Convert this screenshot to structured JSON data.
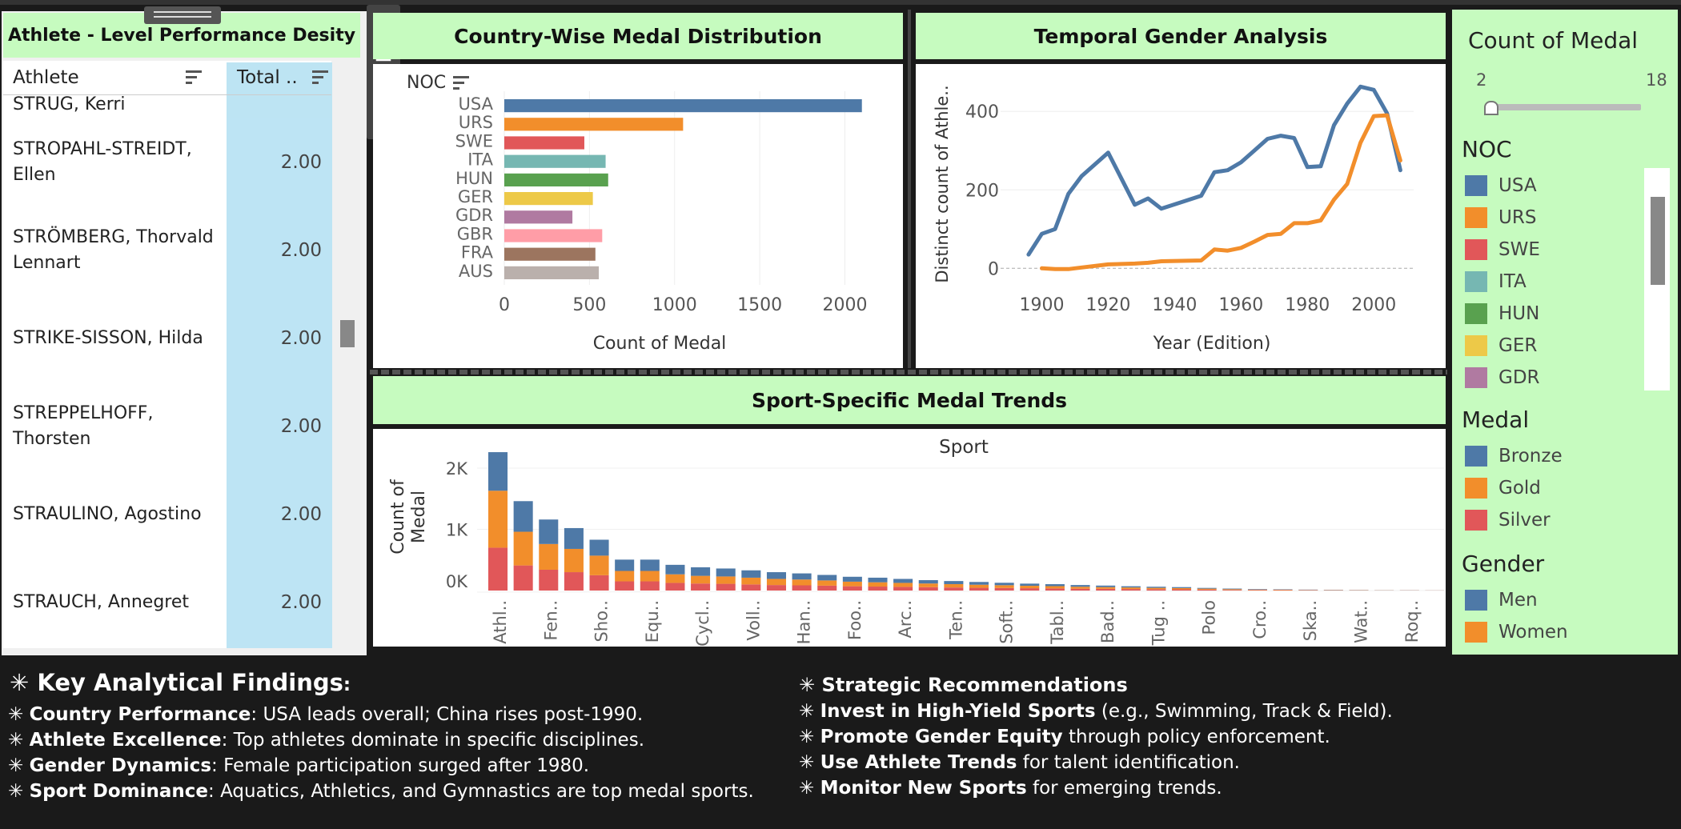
{
  "left_panel": {
    "title": "Athlete - Level Performance Desity",
    "col_athlete": "Athlete",
    "col_total": "Total ..",
    "partial_row": "STRUG, Kerri",
    "rows": [
      {
        "name": "STROPAHL-STREIDT, Ellen",
        "total": "2.00"
      },
      {
        "name": "STRÖMBERG, Thorvald Lennart",
        "total": "2.00"
      },
      {
        "name": "STRIKE-SISSON, Hilda",
        "total": "2.00"
      },
      {
        "name": "STREPPELHOFF, Thorsten",
        "total": "2.00"
      },
      {
        "name": "STRAULINO, Agostino",
        "total": "2.00"
      },
      {
        "name": "STRAUCH, Annegret",
        "total": "2.00"
      }
    ]
  },
  "bar_panel": {
    "title": "Country-Wise Medal Distribution",
    "header": "NOC",
    "xlabel": "Count of Medal",
    "xticks": [
      "0",
      "500",
      "1000",
      "1500",
      "2000"
    ]
  },
  "line_panel": {
    "title": "Temporal Gender Analysis",
    "ylabel": "Distinct count of Athle..",
    "xlabel": "Year (Edition)",
    "yticks": [
      "0",
      "200",
      "400"
    ],
    "xticks": [
      "1900",
      "1920",
      "1940",
      "1960",
      "1980",
      "2000"
    ]
  },
  "sport_panel": {
    "title": "Sport-Specific Medal Trends",
    "header": "Sport",
    "ylabel1": "Count of",
    "ylabel2": "Medal",
    "yticks": [
      "2K",
      "1K",
      "0K"
    ],
    "xticks": [
      "Athl..",
      "Fen..",
      "Sho..",
      "Equ..",
      "Cycl..",
      "Voll..",
      "Han..",
      "Foo..",
      "Arc..",
      "Ten..",
      "Soft..",
      "Tabl..",
      "Bad..",
      "Tug ..",
      "Polo",
      "Cro..",
      "Ska..",
      "Wat..",
      "Roq.."
    ]
  },
  "legend": {
    "count_title": "Count of Medal",
    "range_min": "2",
    "range_max": "18",
    "noc_title": "NOC",
    "noc_items": [
      {
        "label": "USA",
        "color": "#4e79a7"
      },
      {
        "label": "URS",
        "color": "#f28e2b"
      },
      {
        "label": "SWE",
        "color": "#e15759"
      },
      {
        "label": "ITA",
        "color": "#76b7b2"
      },
      {
        "label": "HUN",
        "color": "#59a14f"
      },
      {
        "label": "GER",
        "color": "#edc948"
      },
      {
        "label": "GDR",
        "color": "#b07aa1"
      }
    ],
    "medal_title": "Medal",
    "medal_items": [
      {
        "label": "Bronze",
        "color": "#4e79a7"
      },
      {
        "label": "Gold",
        "color": "#f28e2b"
      },
      {
        "label": "Silver",
        "color": "#e15759"
      }
    ],
    "gender_title": "Gender",
    "gender_items": [
      {
        "label": "Men",
        "color": "#4e79a7"
      },
      {
        "label": "Women",
        "color": "#f28e2b"
      }
    ]
  },
  "findings": {
    "title": "Key Analytical Findings",
    "title_suffix": ":",
    "items": [
      {
        "bold": "Country Performance",
        "text": ": USA leads overall; China rises post-1990."
      },
      {
        "bold": "Athlete Excellence",
        "text": ": Top athletes dominate in specific disciplines."
      },
      {
        "bold": "Gender Dynamics",
        "text": ": Female participation surged after 1980."
      },
      {
        "bold": " Sport Dominance",
        "text": ": Aquatics, Athletics, and Gymnastics are top medal sports."
      }
    ]
  },
  "recommendations": {
    "title": "Strategic Recommendations",
    "items": [
      {
        "bold": "Invest in High-Yield Sports",
        "text": " (e.g., Swimming, Track & Field)."
      },
      {
        "bold": "Promote Gender Equity",
        "text": " through policy enforcement."
      },
      {
        "bold": "Use Athlete Trends",
        "text": " for talent identification."
      },
      {
        "bold": "Monitor New Sports",
        "text": " for emerging trends."
      }
    ]
  },
  "chart_data": [
    {
      "type": "bar",
      "orientation": "horizontal",
      "categories": [
        "USA",
        "URS",
        "SWE",
        "ITA",
        "HUN",
        "GER",
        "GDR",
        "GBR",
        "FRA",
        "AUS"
      ],
      "values": [
        2100,
        1050,
        470,
        595,
        610,
        520,
        400,
        575,
        535,
        555
      ],
      "colors": [
        "#4e79a7",
        "#f28e2b",
        "#e15759",
        "#76b7b2",
        "#59a14f",
        "#edc948",
        "#b07aa1",
        "#ff9da7",
        "#9c755f",
        "#bab0ac"
      ],
      "xlim": [
        0,
        2200
      ]
    },
    {
      "type": "line",
      "xlim": [
        1890,
        2012
      ],
      "ylim": [
        -30,
        480
      ],
      "series": [
        {
          "name": "Men",
          "color": "#4e79a7",
          "points": [
            [
              1896,
              35
            ],
            [
              1900,
              88
            ],
            [
              1904,
              100
            ],
            [
              1908,
              190
            ],
            [
              1912,
              235
            ],
            [
              1920,
              295
            ],
            [
              1928,
              162
            ],
            [
              1932,
              178
            ],
            [
              1936,
              152
            ],
            [
              1948,
              185
            ],
            [
              1952,
              245
            ],
            [
              1956,
              250
            ],
            [
              1960,
              270
            ],
            [
              1964,
              300
            ],
            [
              1968,
              330
            ],
            [
              1972,
              338
            ],
            [
              1976,
              332
            ],
            [
              1980,
              258
            ],
            [
              1984,
              260
            ],
            [
              1988,
              365
            ],
            [
              1992,
              420
            ],
            [
              1996,
              463
            ],
            [
              2000,
              455
            ],
            [
              2004,
              395
            ],
            [
              2008,
              250
            ]
          ]
        },
        {
          "name": "Women",
          "color": "#f28e2b",
          "points": [
            [
              1900,
              0
            ],
            [
              1904,
              -2
            ],
            [
              1908,
              -2
            ],
            [
              1912,
              2
            ],
            [
              1920,
              10
            ],
            [
              1928,
              12
            ],
            [
              1932,
              14
            ],
            [
              1936,
              18
            ],
            [
              1948,
              20
            ],
            [
              1952,
              48
            ],
            [
              1956,
              45
            ],
            [
              1960,
              52
            ],
            [
              1964,
              68
            ],
            [
              1968,
              85
            ],
            [
              1972,
              88
            ],
            [
              1976,
              115
            ],
            [
              1980,
              115
            ],
            [
              1984,
              122
            ],
            [
              1988,
              175
            ],
            [
              1992,
              215
            ],
            [
              1996,
              320
            ],
            [
              2000,
              388
            ],
            [
              2004,
              390
            ],
            [
              2008,
              275
            ]
          ]
        }
      ]
    },
    {
      "type": "bar",
      "stacked": true,
      "categories_count": 38,
      "series": [
        {
          "name": "Silver",
          "color": "#e15759",
          "values": [
            700,
            410,
            340,
            300,
            250,
            150,
            150,
            125,
            115,
            110,
            100,
            90,
            85,
            80,
            70,
            65,
            60,
            55,
            50,
            45,
            42,
            38,
            35,
            30,
            28,
            25,
            22,
            20,
            15,
            10,
            8,
            6,
            5,
            4,
            3,
            2,
            2,
            1
          ]
        },
        {
          "name": "Gold",
          "color": "#f28e2b",
          "values": [
            930,
            550,
            420,
            380,
            320,
            170,
            170,
            140,
            125,
            120,
            110,
            100,
            95,
            85,
            75,
            70,
            65,
            60,
            55,
            50,
            45,
            40,
            37,
            32,
            28,
            25,
            22,
            20,
            16,
            12,
            8,
            7,
            5,
            4,
            3,
            2,
            2,
            1
          ]
        },
        {
          "name": "Bronze",
          "color": "#4e79a7",
          "values": [
            630,
            500,
            400,
            340,
            260,
            185,
            185,
            155,
            140,
            130,
            120,
            110,
            100,
            90,
            80,
            75,
            65,
            55,
            50,
            45,
            40,
            35,
            32,
            28,
            25,
            20,
            18,
            16,
            12,
            10,
            8,
            6,
            5,
            4,
            3,
            2,
            2,
            1
          ]
        }
      ],
      "ylim": [
        0,
        2300
      ]
    }
  ]
}
